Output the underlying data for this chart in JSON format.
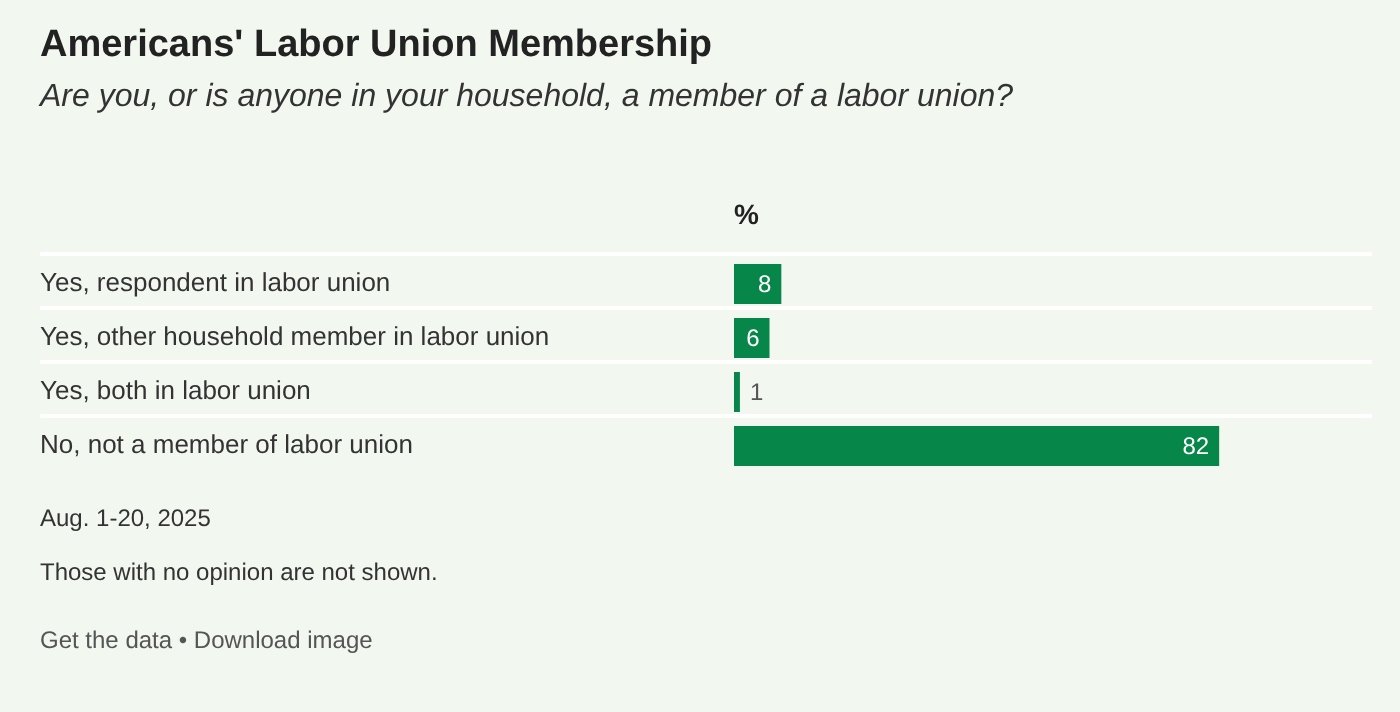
{
  "chart_data": {
    "type": "bar",
    "orientation": "horizontal",
    "title": "Americans' Labor Union Membership",
    "subtitle": "Are you, or is anyone in your household, a member of a labor union?",
    "xlabel": "%",
    "categories": [
      "Yes, respondent in labor union",
      "Yes, other household member in labor union",
      "Yes, both in labor union",
      "No, not a member of labor union"
    ],
    "values": [
      8,
      6,
      1,
      82
    ],
    "color": "#07864a",
    "data_labels": true,
    "annotations": [
      "Aug. 1-20, 2025",
      "Those with no opinion are not shown.",
      "Get the data • Download image"
    ]
  }
}
